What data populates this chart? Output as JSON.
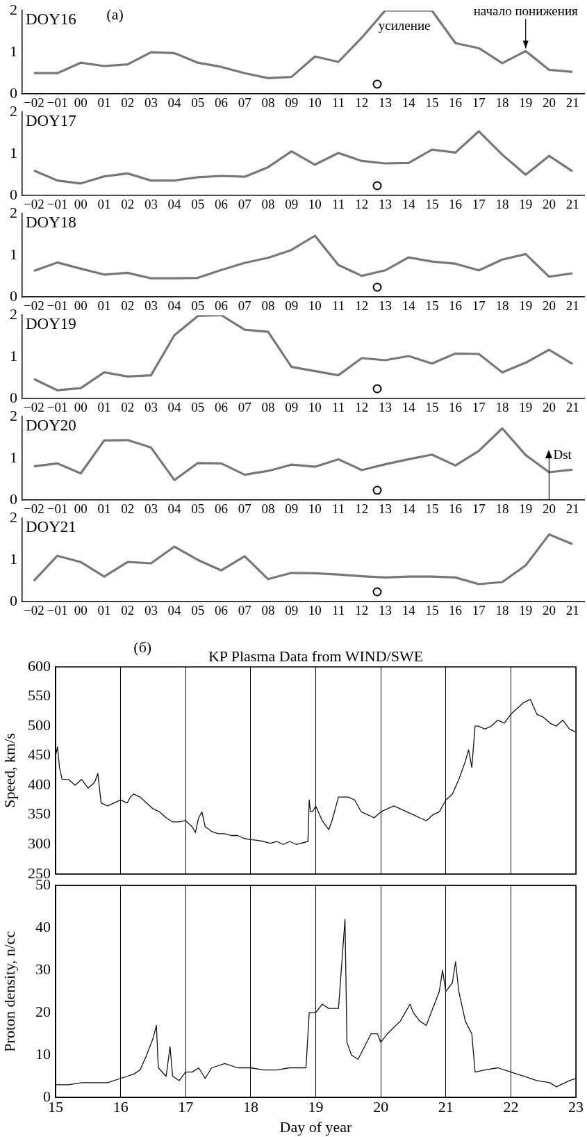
{
  "chart_data": [
    {
      "type": "line",
      "title": "DOY16",
      "annotations": [
        "(a)",
        "усиление",
        {
          "text": "начало понижения",
          "x": "19",
          "y": 1.03
        }
      ],
      "categories": [
        "−02",
        "−01",
        "00",
        "01",
        "02",
        "03",
        "04",
        "05",
        "06",
        "07",
        "08",
        "09",
        "10",
        "11",
        "12",
        "13",
        "14",
        "15",
        "16",
        "17",
        "18",
        "19",
        "20",
        "21"
      ],
      "ylim": [
        0,
        2
      ],
      "yticks": [
        0,
        1,
        2
      ],
      "series": [
        {
          "color": "#777777",
          "values": [
            0.5,
            0.5,
            0.75,
            0.67,
            0.71,
            1.0,
            0.98,
            0.75,
            0.65,
            0.5,
            0.38,
            0.41,
            0.9,
            0.77,
            1.35,
            2.0,
            2.0,
            2.0,
            1.22,
            1.1,
            0.74,
            1.03,
            0.58,
            0.53
          ]
        }
      ]
    },
    {
      "type": "line",
      "title": "DOY17",
      "categories": [
        "−02",
        "−01",
        "00",
        "01",
        "02",
        "03",
        "04",
        "05",
        "06",
        "07",
        "08",
        "09",
        "10",
        "11",
        "12",
        "13",
        "14",
        "15",
        "16",
        "17",
        "18",
        "19",
        "20",
        "21"
      ],
      "ylim": [
        0,
        2
      ],
      "yticks": [
        0,
        1,
        2
      ],
      "series": [
        {
          "color": "#777777",
          "values": [
            0.6,
            0.36,
            0.29,
            0.46,
            0.53,
            0.36,
            0.36,
            0.44,
            0.47,
            0.45,
            0.68,
            1.06,
            0.74,
            1.02,
            0.83,
            0.77,
            0.78,
            1.1,
            1.03,
            1.54,
            0.98,
            0.5,
            0.95,
            0.58
          ]
        }
      ]
    },
    {
      "type": "line",
      "title": "DOY18",
      "categories": [
        "−02",
        "−01",
        "00",
        "01",
        "02",
        "03",
        "04",
        "05",
        "06",
        "07",
        "08",
        "09",
        "10",
        "11",
        "12",
        "13",
        "14",
        "15",
        "16",
        "17",
        "18",
        "19",
        "20",
        "21"
      ],
      "ylim": [
        0,
        2
      ],
      "yticks": [
        0,
        1,
        2
      ],
      "series": [
        {
          "color": "#777777",
          "values": [
            0.63,
            0.83,
            0.68,
            0.54,
            0.58,
            0.45,
            0.45,
            0.46,
            0.65,
            0.82,
            0.94,
            1.13,
            1.47,
            0.77,
            0.51,
            0.64,
            0.95,
            0.85,
            0.8,
            0.64,
            0.9,
            1.03,
            0.49,
            0.57
          ]
        }
      ]
    },
    {
      "type": "line",
      "title": "DOY19",
      "categories": [
        "−02",
        "−01",
        "00",
        "01",
        "02",
        "03",
        "04",
        "05",
        "06",
        "07",
        "08",
        "09",
        "10",
        "11",
        "12",
        "13",
        "14",
        "15",
        "16",
        "17",
        "18",
        "19",
        "20",
        "21"
      ],
      "ylim": [
        0,
        2
      ],
      "yticks": [
        0,
        1,
        2
      ],
      "series": [
        {
          "color": "#777777",
          "values": [
            0.47,
            0.2,
            0.25,
            0.63,
            0.53,
            0.56,
            1.52,
            1.98,
            2.0,
            1.65,
            1.6,
            0.76,
            0.66,
            0.56,
            0.97,
            0.92,
            1.02,
            0.84,
            1.08,
            1.07,
            0.63,
            0.86,
            1.17,
            0.83
          ]
        }
      ]
    },
    {
      "type": "line",
      "title": "DOY20",
      "ref_lines": [
        {
          "axis": "x",
          "value": "20",
          "label": "Dst"
        }
      ],
      "categories": [
        "−02",
        "−01",
        "00",
        "01",
        "02",
        "03",
        "04",
        "05",
        "06",
        "07",
        "08",
        "09",
        "10",
        "11",
        "12",
        "13",
        "14",
        "15",
        "16",
        "17",
        "18",
        "19",
        "20",
        "21"
      ],
      "ylim": [
        0,
        2
      ],
      "yticks": [
        0,
        1,
        2
      ],
      "series": [
        {
          "color": "#777777",
          "values": [
            0.81,
            0.88,
            0.64,
            1.43,
            1.44,
            1.26,
            0.48,
            0.89,
            0.88,
            0.61,
            0.7,
            0.85,
            0.8,
            0.98,
            0.72,
            0.86,
            0.98,
            1.09,
            0.83,
            1.18,
            1.72,
            1.08,
            0.67,
            0.73
          ]
        }
      ]
    },
    {
      "type": "line",
      "title": "DOY21",
      "categories": [
        "−02",
        "−01",
        "00",
        "01",
        "02",
        "03",
        "04",
        "05",
        "06",
        "07",
        "08",
        "09",
        "10",
        "11",
        "12",
        "13",
        "14",
        "15",
        "16",
        "17",
        "18",
        "19",
        "20",
        "21"
      ],
      "ylim": [
        0,
        2
      ],
      "yticks": [
        0,
        1,
        2
      ],
      "series": [
        {
          "color": "#777777",
          "values": [
            0.5,
            1.1,
            0.95,
            0.6,
            0.95,
            0.92,
            1.32,
            1.0,
            0.75,
            1.09,
            0.54,
            0.69,
            0.68,
            0.65,
            0.61,
            0.58,
            0.6,
            0.6,
            0.58,
            0.42,
            0.47,
            0.87,
            1.61,
            1.38
          ]
        }
      ]
    },
    {
      "type": "line",
      "title": "KP Plasma Data from WIND/SWE",
      "annotations": [
        "(б)"
      ],
      "ylabel": "Speed, km/s",
      "xlim": [
        15,
        23
      ],
      "xticks": [
        15,
        16,
        17,
        18,
        19,
        20,
        21,
        22,
        23
      ],
      "ylim": [
        250,
        600
      ],
      "yticks": [
        250,
        300,
        350,
        400,
        450,
        500,
        550,
        600
      ],
      "grid": "x",
      "tick_labels": "y",
      "series": [
        {
          "color": "#111111",
          "x": [
            15.0,
            15.03,
            15.06,
            15.1,
            15.2,
            15.3,
            15.4,
            15.5,
            15.6,
            15.65,
            15.7,
            15.8,
            15.9,
            16.0,
            16.1,
            16.15,
            16.2,
            16.3,
            16.4,
            16.5,
            16.6,
            16.7,
            16.8,
            16.9,
            17.0,
            17.1,
            17.15,
            17.2,
            17.25,
            17.3,
            17.4,
            17.5,
            17.6,
            17.7,
            17.8,
            17.9,
            18.0,
            18.1,
            18.2,
            18.3,
            18.4,
            18.5,
            18.6,
            18.7,
            18.88,
            18.9,
            18.92,
            18.95,
            19.0,
            19.1,
            19.2,
            19.25,
            19.35,
            19.5,
            19.6,
            19.7,
            19.8,
            19.9,
            20.0,
            20.1,
            20.2,
            20.3,
            20.4,
            20.5,
            20.6,
            20.7,
            20.8,
            20.9,
            21.0,
            21.1,
            21.2,
            21.3,
            21.35,
            21.4,
            21.45,
            21.5,
            21.6,
            21.7,
            21.8,
            21.9,
            22.0,
            22.1,
            22.2,
            22.3,
            22.4,
            22.5,
            22.6,
            22.7,
            22.8,
            22.9,
            23.0
          ],
          "values": [
            450,
            465,
            430,
            410,
            410,
            400,
            410,
            395,
            405,
            420,
            370,
            365,
            370,
            375,
            370,
            380,
            385,
            380,
            370,
            360,
            355,
            345,
            338,
            338,
            340,
            330,
            320,
            345,
            355,
            330,
            322,
            318,
            318,
            315,
            315,
            310,
            308,
            307,
            305,
            302,
            305,
            300,
            305,
            300,
            305,
            375,
            355,
            355,
            365,
            340,
            325,
            340,
            380,
            380,
            375,
            355,
            350,
            345,
            355,
            360,
            365,
            360,
            355,
            350,
            345,
            340,
            350,
            355,
            375,
            385,
            410,
            440,
            460,
            430,
            500,
            500,
            495,
            500,
            510,
            505,
            520,
            530,
            540,
            545,
            520,
            515,
            505,
            500,
            510,
            495,
            490
          ]
        }
      ]
    },
    {
      "type": "line",
      "xlabel": "Day of year",
      "ylabel": "Proton density, n/cc",
      "xlim": [
        15,
        23
      ],
      "xticks": [
        15,
        16,
        17,
        18,
        19,
        20,
        21,
        22,
        23
      ],
      "ylim": [
        0,
        50
      ],
      "yticks": [
        0,
        10,
        20,
        30,
        40,
        50
      ],
      "grid": "x",
      "series": [
        {
          "color": "#111111",
          "x": [
            15.0,
            15.2,
            15.4,
            15.6,
            15.8,
            16.0,
            16.2,
            16.3,
            16.4,
            16.5,
            16.55,
            16.58,
            16.7,
            16.76,
            16.8,
            16.9,
            17.0,
            17.1,
            17.2,
            17.3,
            17.4,
            17.6,
            17.8,
            18.0,
            18.2,
            18.4,
            18.6,
            18.85,
            18.9,
            19.0,
            19.1,
            19.2,
            19.35,
            19.45,
            19.48,
            19.55,
            19.65,
            19.75,
            19.85,
            19.95,
            20.0,
            20.1,
            20.3,
            20.45,
            20.5,
            20.6,
            20.7,
            20.8,
            20.9,
            20.95,
            21.0,
            21.1,
            21.15,
            21.2,
            21.3,
            21.4,
            21.45,
            21.6,
            21.8,
            22.0,
            22.2,
            22.4,
            22.6,
            22.7,
            22.9,
            23.0
          ],
          "values": [
            3,
            3,
            3.5,
            3.5,
            3.5,
            4.5,
            5.5,
            6.5,
            10,
            14,
            17,
            7,
            5,
            12,
            5,
            4,
            6,
            6,
            7,
            4.5,
            7,
            8,
            7,
            7,
            6.5,
            6.5,
            7,
            7,
            20,
            20,
            22,
            21,
            21,
            42,
            13,
            10,
            9,
            12,
            15,
            15,
            13,
            15,
            18,
            22,
            20,
            18,
            17,
            21,
            25,
            30,
            25,
            27,
            32,
            25,
            18,
            15,
            6,
            6.5,
            7,
            6,
            5,
            4,
            3.5,
            2.5,
            4,
            4.5
          ]
        }
      ]
    }
  ]
}
